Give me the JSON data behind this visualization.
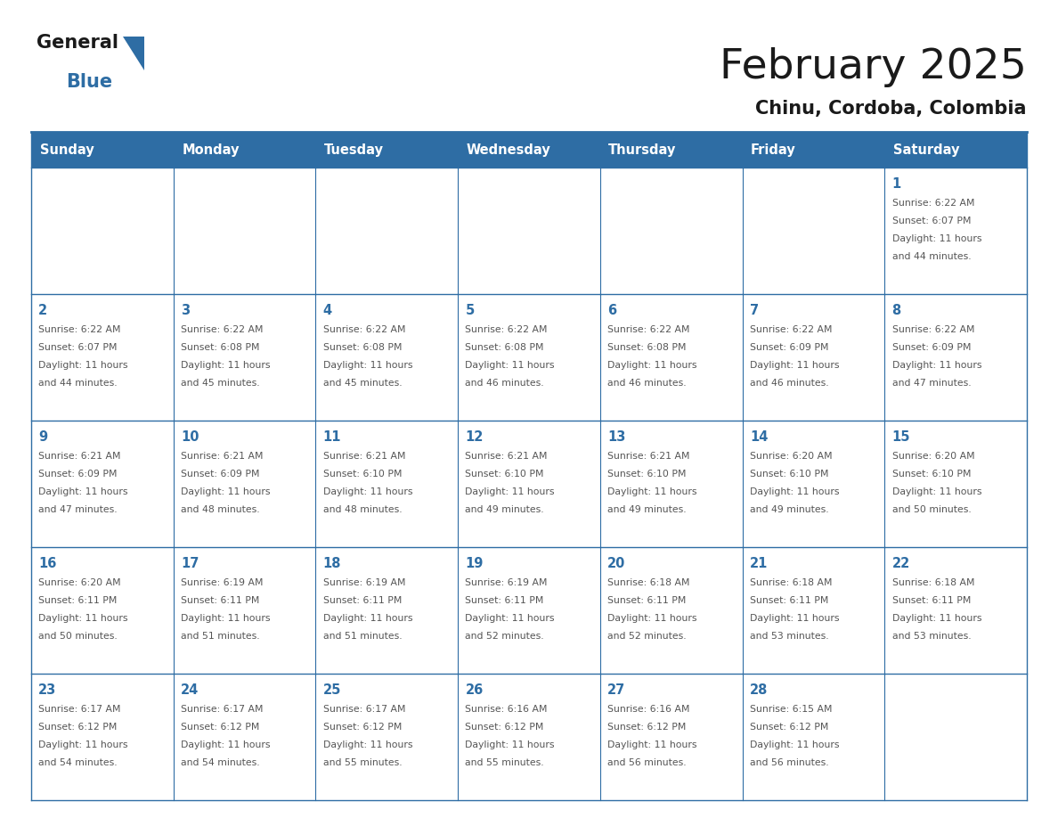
{
  "title": "February 2025",
  "subtitle": "Chinu, Cordoba, Colombia",
  "header_bg": "#2E6DA4",
  "header_text": "#FFFFFF",
  "border_color": "#2E6DA4",
  "day_names": [
    "Sunday",
    "Monday",
    "Tuesday",
    "Wednesday",
    "Thursday",
    "Friday",
    "Saturday"
  ],
  "title_color": "#1a1a1a",
  "subtitle_color": "#1a1a1a",
  "day_number_color": "#2E6DA4",
  "cell_text_color": "#555555",
  "calendar": [
    [
      null,
      null,
      null,
      null,
      null,
      null,
      {
        "day": 1,
        "rise": "6:22 AM",
        "set": "6:07 PM",
        "hours": 11,
        "mins": 44
      }
    ],
    [
      {
        "day": 2,
        "rise": "6:22 AM",
        "set": "6:07 PM",
        "hours": 11,
        "mins": 44
      },
      {
        "day": 3,
        "rise": "6:22 AM",
        "set": "6:08 PM",
        "hours": 11,
        "mins": 45
      },
      {
        "day": 4,
        "rise": "6:22 AM",
        "set": "6:08 PM",
        "hours": 11,
        "mins": 45
      },
      {
        "day": 5,
        "rise": "6:22 AM",
        "set": "6:08 PM",
        "hours": 11,
        "mins": 46
      },
      {
        "day": 6,
        "rise": "6:22 AM",
        "set": "6:08 PM",
        "hours": 11,
        "mins": 46
      },
      {
        "day": 7,
        "rise": "6:22 AM",
        "set": "6:09 PM",
        "hours": 11,
        "mins": 46
      },
      {
        "day": 8,
        "rise": "6:22 AM",
        "set": "6:09 PM",
        "hours": 11,
        "mins": 47
      }
    ],
    [
      {
        "day": 9,
        "rise": "6:21 AM",
        "set": "6:09 PM",
        "hours": 11,
        "mins": 47
      },
      {
        "day": 10,
        "rise": "6:21 AM",
        "set": "6:09 PM",
        "hours": 11,
        "mins": 48
      },
      {
        "day": 11,
        "rise": "6:21 AM",
        "set": "6:10 PM",
        "hours": 11,
        "mins": 48
      },
      {
        "day": 12,
        "rise": "6:21 AM",
        "set": "6:10 PM",
        "hours": 11,
        "mins": 49
      },
      {
        "day": 13,
        "rise": "6:21 AM",
        "set": "6:10 PM",
        "hours": 11,
        "mins": 49
      },
      {
        "day": 14,
        "rise": "6:20 AM",
        "set": "6:10 PM",
        "hours": 11,
        "mins": 49
      },
      {
        "day": 15,
        "rise": "6:20 AM",
        "set": "6:10 PM",
        "hours": 11,
        "mins": 50
      }
    ],
    [
      {
        "day": 16,
        "rise": "6:20 AM",
        "set": "6:11 PM",
        "hours": 11,
        "mins": 50
      },
      {
        "day": 17,
        "rise": "6:19 AM",
        "set": "6:11 PM",
        "hours": 11,
        "mins": 51
      },
      {
        "day": 18,
        "rise": "6:19 AM",
        "set": "6:11 PM",
        "hours": 11,
        "mins": 51
      },
      {
        "day": 19,
        "rise": "6:19 AM",
        "set": "6:11 PM",
        "hours": 11,
        "mins": 52
      },
      {
        "day": 20,
        "rise": "6:18 AM",
        "set": "6:11 PM",
        "hours": 11,
        "mins": 52
      },
      {
        "day": 21,
        "rise": "6:18 AM",
        "set": "6:11 PM",
        "hours": 11,
        "mins": 53
      },
      {
        "day": 22,
        "rise": "6:18 AM",
        "set": "6:11 PM",
        "hours": 11,
        "mins": 53
      }
    ],
    [
      {
        "day": 23,
        "rise": "6:17 AM",
        "set": "6:12 PM",
        "hours": 11,
        "mins": 54
      },
      {
        "day": 24,
        "rise": "6:17 AM",
        "set": "6:12 PM",
        "hours": 11,
        "mins": 54
      },
      {
        "day": 25,
        "rise": "6:17 AM",
        "set": "6:12 PM",
        "hours": 11,
        "mins": 55
      },
      {
        "day": 26,
        "rise": "6:16 AM",
        "set": "6:12 PM",
        "hours": 11,
        "mins": 55
      },
      {
        "day": 27,
        "rise": "6:16 AM",
        "set": "6:12 PM",
        "hours": 11,
        "mins": 56
      },
      {
        "day": 28,
        "rise": "6:15 AM",
        "set": "6:12 PM",
        "hours": 11,
        "mins": 56
      },
      null
    ]
  ],
  "fig_width": 11.88,
  "fig_height": 9.18,
  "dpi": 100
}
